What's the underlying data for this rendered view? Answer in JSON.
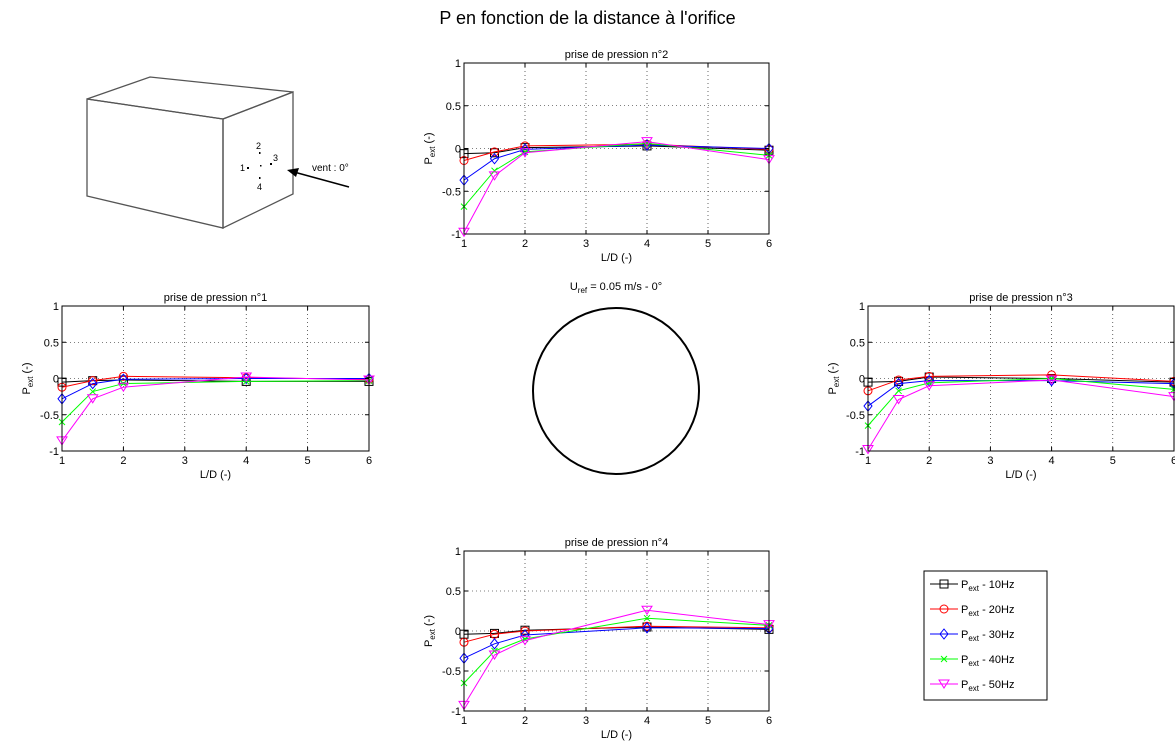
{
  "figure": {
    "title": "P en fonction de la distance à l'orifice",
    "center_label": {
      "main": "U",
      "sub": "ref",
      "rest": " = 0.05 m/s - 0°"
    },
    "sketch": {
      "taps": [
        "1",
        "2",
        "3",
        "4"
      ],
      "wind_label": "vent : 0°"
    },
    "legend": [
      {
        "main": "P",
        "sub": "ext",
        "suffix": " - 10Hz",
        "color": "#000000",
        "marker": "square"
      },
      {
        "main": "P",
        "sub": "ext",
        "suffix": " - 20Hz",
        "color": "#ff0000",
        "marker": "circle"
      },
      {
        "main": "P",
        "sub": "ext",
        "suffix": " - 30Hz",
        "color": "#0000ff",
        "marker": "diamond"
      },
      {
        "main": "P",
        "sub": "ext",
        "suffix": " - 40Hz",
        "color": "#00ff00",
        "marker": "x"
      },
      {
        "main": "P",
        "sub": "ext",
        "suffix": " - 50Hz",
        "color": "#ff00ff",
        "marker": "triangle-down"
      }
    ]
  },
  "chart_data": [
    {
      "type": "line",
      "title": "prise de pression n°2",
      "xlabel": "L/D (-)",
      "ylabel": {
        "main": "P",
        "sub": "ext",
        "rest": " (-)"
      },
      "xlim": [
        1,
        6
      ],
      "ylim": [
        -1,
        1
      ],
      "xticks": [
        1,
        2,
        3,
        4,
        5,
        6
      ],
      "yticks": [
        -1,
        -0.5,
        0,
        0.5,
        1
      ],
      "grid": true,
      "x": [
        1,
        1.5,
        2,
        4,
        6
      ],
      "series": [
        {
          "name": "Pext - 10Hz",
          "values": [
            -0.06,
            -0.05,
            0.01,
            0.03,
            -0.02
          ]
        },
        {
          "name": "Pext - 20Hz",
          "values": [
            -0.14,
            -0.04,
            0.03,
            0.05,
            -0.01
          ]
        },
        {
          "name": "Pext - 30Hz",
          "values": [
            -0.37,
            -0.12,
            -0.01,
            0.04,
            0.0
          ]
        },
        {
          "name": "Pext - 40Hz",
          "values": [
            -0.68,
            -0.26,
            -0.04,
            0.06,
            -0.08
          ]
        },
        {
          "name": "Pext - 50Hz",
          "values": [
            -0.98,
            -0.32,
            -0.05,
            0.08,
            -0.13
          ]
        }
      ]
    },
    {
      "type": "line",
      "title": "prise de pression n°1",
      "xlabel": "L/D (-)",
      "ylabel": {
        "main": "P",
        "sub": "ext",
        "rest": " (-)"
      },
      "xlim": [
        1,
        6
      ],
      "ylim": [
        -1,
        1
      ],
      "xticks": [
        1,
        2,
        3,
        4,
        5,
        6
      ],
      "yticks": [
        -1,
        -0.5,
        0,
        0.5,
        1
      ],
      "grid": true,
      "x": [
        1,
        1.5,
        2,
        4,
        6
      ],
      "series": [
        {
          "name": "Pext - 10Hz",
          "values": [
            -0.05,
            -0.03,
            -0.02,
            -0.04,
            -0.04
          ]
        },
        {
          "name": "Pext - 20Hz",
          "values": [
            -0.12,
            -0.03,
            0.03,
            0.01,
            -0.01
          ]
        },
        {
          "name": "Pext - 30Hz",
          "values": [
            -0.28,
            -0.07,
            -0.01,
            0.0,
            0.0
          ]
        },
        {
          "name": "Pext - 40Hz",
          "values": [
            -0.6,
            -0.18,
            -0.07,
            -0.04,
            -0.03
          ]
        },
        {
          "name": "Pext - 50Hz",
          "values": [
            -0.86,
            -0.28,
            -0.12,
            0.02,
            -0.02
          ]
        }
      ]
    },
    {
      "type": "line",
      "title": "prise de pression n°3",
      "xlabel": "L/D (-)",
      "ylabel": {
        "main": "P",
        "sub": "ext",
        "rest": " (-)"
      },
      "xlim": [
        1,
        6
      ],
      "ylim": [
        -1,
        1
      ],
      "xticks": [
        1,
        2,
        3,
        4,
        5,
        6
      ],
      "yticks": [
        -1,
        -0.5,
        0,
        0.5,
        1
      ],
      "grid": true,
      "x": [
        1,
        1.5,
        2,
        4,
        6
      ],
      "series": [
        {
          "name": "Pext - 10Hz",
          "values": [
            -0.05,
            -0.04,
            0.02,
            0.0,
            -0.05
          ]
        },
        {
          "name": "Pext - 20Hz",
          "values": [
            -0.17,
            -0.02,
            0.03,
            0.05,
            -0.04
          ]
        },
        {
          "name": "Pext - 30Hz",
          "values": [
            -0.38,
            -0.07,
            -0.03,
            -0.03,
            -0.07
          ]
        },
        {
          "name": "Pext - 40Hz",
          "values": [
            -0.65,
            -0.17,
            -0.06,
            0.0,
            -0.15
          ]
        },
        {
          "name": "Pext - 50Hz",
          "values": [
            -0.98,
            -0.29,
            -0.1,
            -0.02,
            -0.25
          ]
        }
      ]
    },
    {
      "type": "line",
      "title": "prise de pression n°4",
      "xlabel": "L/D (-)",
      "ylabel": {
        "main": "P",
        "sub": "ext",
        "rest": " (-)"
      },
      "xlim": [
        1,
        6
      ],
      "ylim": [
        -1,
        1
      ],
      "xticks": [
        1,
        2,
        3,
        4,
        5,
        6
      ],
      "yticks": [
        -1,
        -0.5,
        0,
        0.5,
        1
      ],
      "grid": true,
      "x": [
        1,
        1.5,
        2,
        4,
        6
      ],
      "series": [
        {
          "name": "Pext - 10Hz",
          "values": [
            -0.04,
            -0.03,
            0.01,
            0.05,
            0.02
          ]
        },
        {
          "name": "Pext - 20Hz",
          "values": [
            -0.14,
            -0.04,
            0.0,
            0.06,
            0.04
          ]
        },
        {
          "name": "Pext - 30Hz",
          "values": [
            -0.34,
            -0.16,
            -0.05,
            0.04,
            0.03
          ]
        },
        {
          "name": "Pext - 40Hz",
          "values": [
            -0.65,
            -0.25,
            -0.1,
            0.16,
            0.07
          ]
        },
        {
          "name": "Pext - 50Hz",
          "values": [
            -0.93,
            -0.3,
            -0.12,
            0.26,
            0.08
          ]
        }
      ]
    }
  ]
}
